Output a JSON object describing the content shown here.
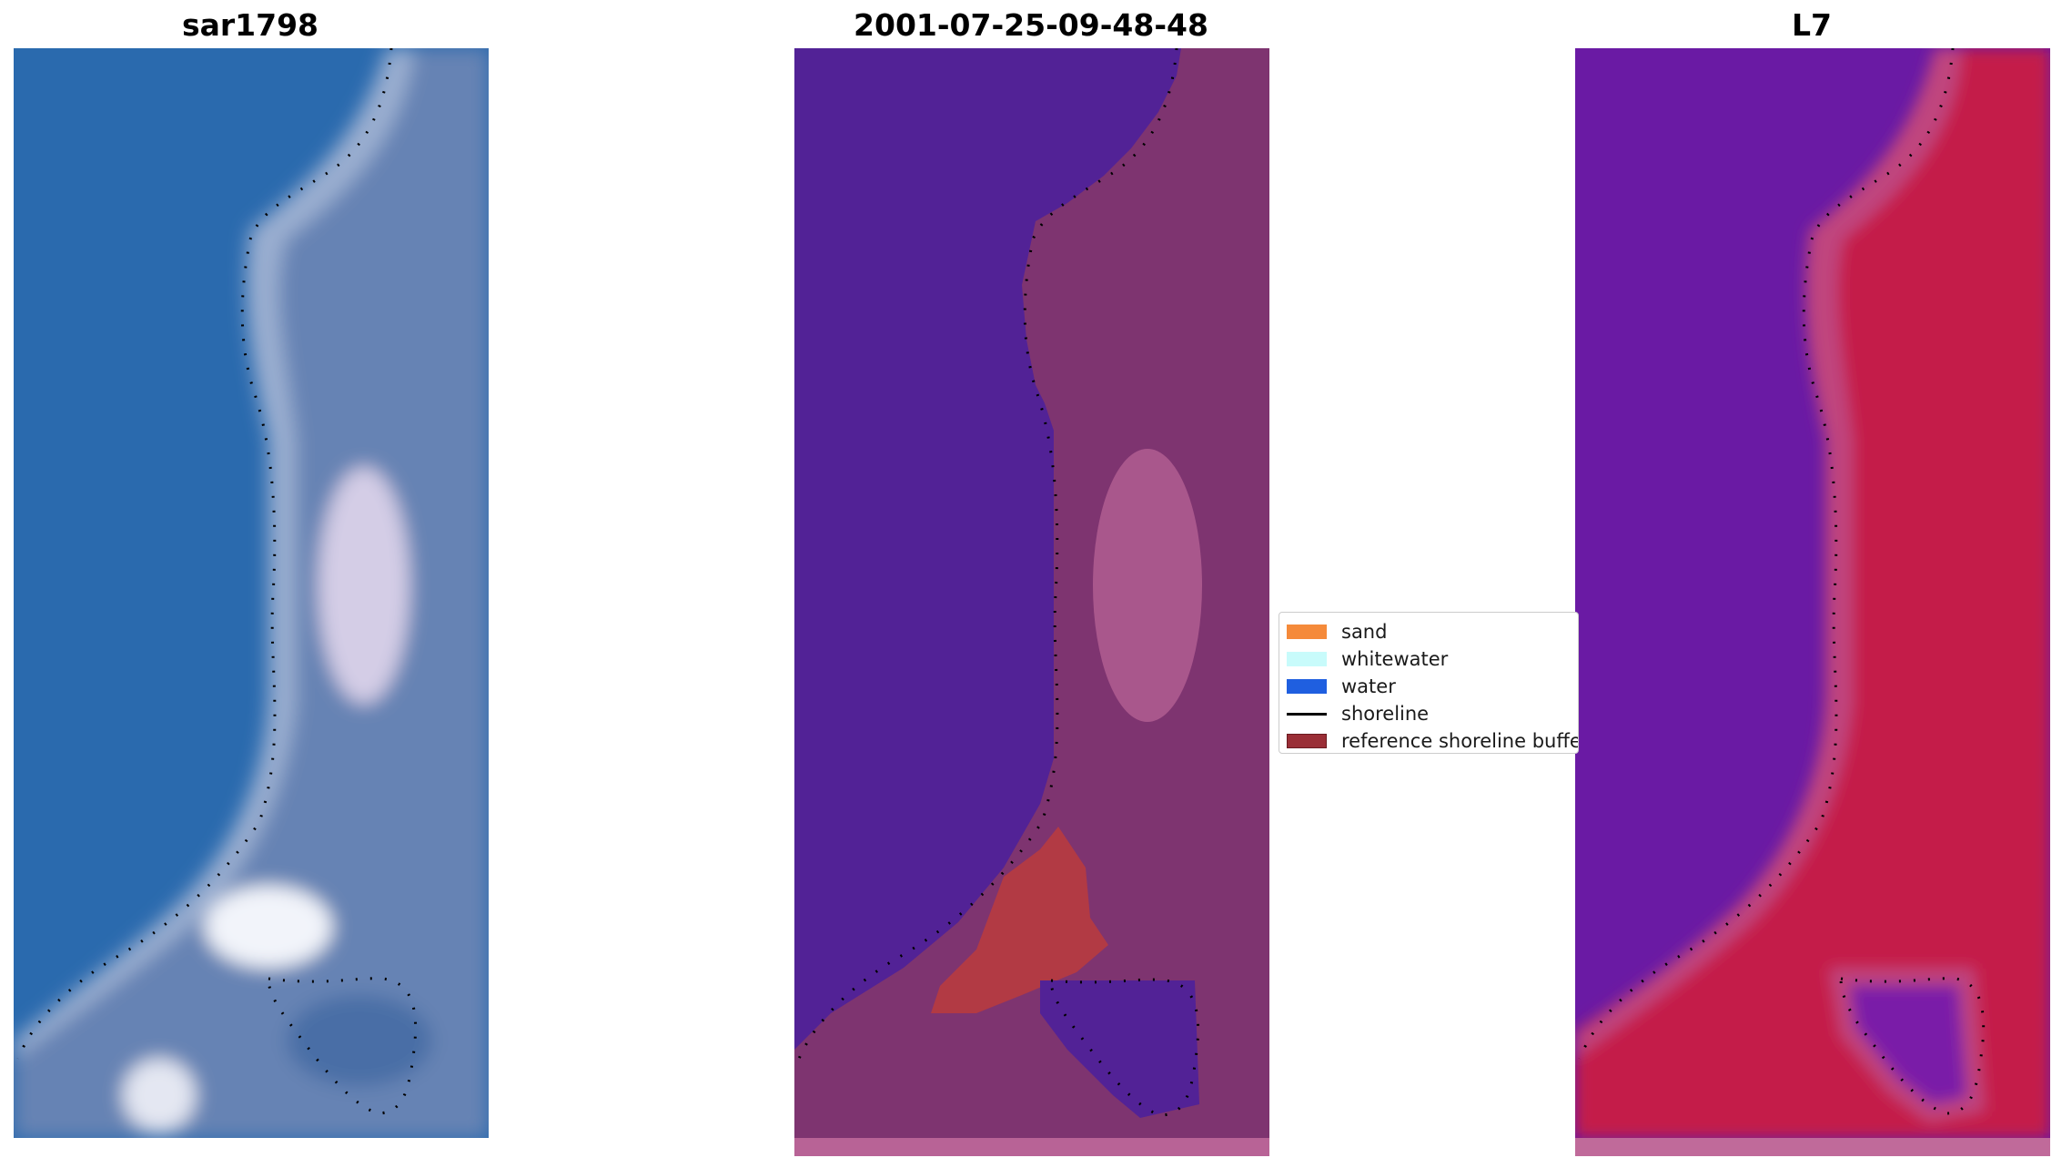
{
  "panels": [
    {
      "title": "sar1798"
    },
    {
      "title": "2001-07-25-09-48-48"
    },
    {
      "title": "L7"
    }
  ],
  "legend": {
    "items": [
      {
        "label": "sand",
        "color": "#f58a3a",
        "kind": "patch"
      },
      {
        "label": "whitewater",
        "color": "#c8fbfb",
        "kind": "patch"
      },
      {
        "label": "water",
        "color": "#1f5fe0",
        "kind": "patch"
      },
      {
        "label": "shoreline",
        "color": "#000000",
        "kind": "line"
      },
      {
        "label": "reference shoreline buffe",
        "color": "#9a2e36",
        "kind": "patch"
      }
    ]
  },
  "colors": {
    "rgb_sea": "#2a6aae",
    "rgb_land": "#6683b4",
    "rgb_sand": "#d8d2e8",
    "class_water": "#522296",
    "class_land": "#7e3470",
    "class_pink": "#b86396",
    "class_buffer": "#b23a44",
    "ndwi_water": "#6a1aa4",
    "ndwi_land": "#c41a48",
    "ndwi_edge": "#c0447e"
  }
}
